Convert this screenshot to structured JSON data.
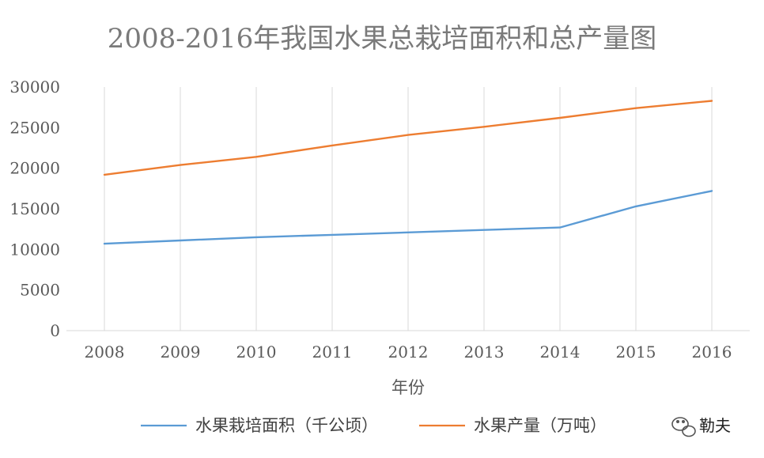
{
  "chart_data": {
    "type": "line",
    "title": "2008-2016年我国水果总栽培面积和总产量图",
    "xlabel": "年份",
    "ylabel": "",
    "categories": [
      "2008",
      "2009",
      "2010",
      "2011",
      "2012",
      "2013",
      "2014",
      "2015",
      "2016"
    ],
    "ylim": [
      0,
      30000
    ],
    "yticks": [
      0,
      5000,
      10000,
      15000,
      20000,
      25000,
      30000
    ],
    "grid": "vertical",
    "legend_position": "bottom",
    "series": [
      {
        "name": "水果栽培面积（千公顷）",
        "color": "#5b9bd5",
        "values": [
          10700,
          11100,
          11500,
          11800,
          12100,
          12400,
          12700,
          15300,
          17200
        ]
      },
      {
        "name": "水果产量（万吨）",
        "color": "#ed7d31",
        "values": [
          19200,
          20400,
          21400,
          22800,
          24100,
          25100,
          26200,
          27400,
          28300
        ]
      }
    ]
  },
  "watermark": {
    "icon": "wechat-icon",
    "text": "勒夫"
  }
}
